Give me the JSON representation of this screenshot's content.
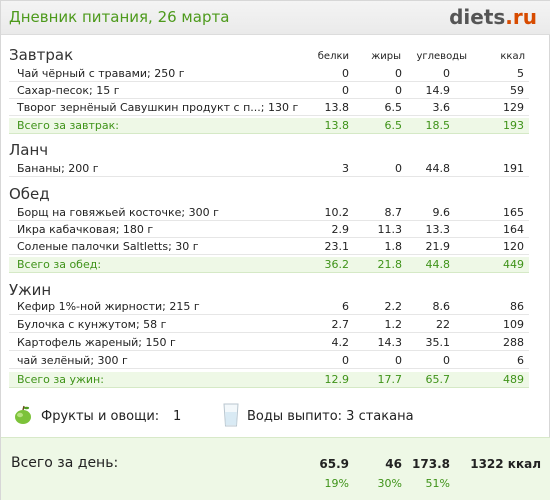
{
  "header": {
    "title": "Дневник питания, 26 марта",
    "logo_main": "diets",
    "logo_tld": ".ru"
  },
  "columns": {
    "protein": "белки",
    "fat": "жиры",
    "carbs": "углеводы",
    "kcal": "ккал"
  },
  "sections": [
    {
      "title": "Завтрак",
      "rows": [
        {
          "name": "Чай чёрный с травами; 250 г",
          "protein": "0",
          "fat": "0",
          "carbs": "0",
          "kcal": "5"
        },
        {
          "name": "Сахар-песок; 15 г",
          "protein": "0",
          "fat": "0",
          "carbs": "14.9",
          "kcal": "59"
        },
        {
          "name": "Творог зернёный Савушкин продукт с п...; 130 г",
          "protein": "13.8",
          "fat": "6.5",
          "carbs": "3.6",
          "kcal": "129"
        }
      ],
      "total": {
        "label": "Всего за завтрак:",
        "protein": "13.8",
        "fat": "6.5",
        "carbs": "18.5",
        "kcal": "193"
      }
    },
    {
      "title": "Ланч",
      "rows": [
        {
          "name": "Бананы; 200 г",
          "protein": "3",
          "fat": "0",
          "carbs": "44.8",
          "kcal": "191"
        }
      ]
    },
    {
      "title": "Обед",
      "rows": [
        {
          "name": "Борщ на говяжьей косточке; 300 г",
          "protein": "10.2",
          "fat": "8.7",
          "carbs": "9.6",
          "kcal": "165"
        },
        {
          "name": "Икра кабачковая; 180 г",
          "protein": "2.9",
          "fat": "11.3",
          "carbs": "13.3",
          "kcal": "164"
        },
        {
          "name": "Соленые палочки Saltletts; 30 г",
          "protein": "23.1",
          "fat": "1.8",
          "carbs": "21.9",
          "kcal": "120"
        }
      ],
      "total": {
        "label": "Всего за обед:",
        "protein": "36.2",
        "fat": "21.8",
        "carbs": "44.8",
        "kcal": "449"
      }
    },
    {
      "title": "Ужин",
      "rows": [
        {
          "name": "Кефир 1%-ной жирности; 215 г",
          "protein": "6",
          "fat": "2.2",
          "carbs": "8.6",
          "kcal": "86"
        },
        {
          "name": "Булочка с кунжутом; 58 г",
          "protein": "2.7",
          "fat": "1.2",
          "carbs": "22",
          "kcal": "109"
        },
        {
          "name": "Картофель жареный; 150 г",
          "protein": "4.2",
          "fat": "14.3",
          "carbs": "35.1",
          "kcal": "288"
        },
        {
          "name": "чай зелёный; 300 г",
          "protein": "0",
          "fat": "0",
          "carbs": "0",
          "kcal": "6"
        }
      ],
      "total": {
        "label": "Всего за ужин:",
        "protein": "12.9",
        "fat": "17.7",
        "carbs": "65.7",
        "kcal": "489"
      }
    }
  ],
  "extras": {
    "fruits_label": "Фрукты и овощи:",
    "fruits_value": "1",
    "water_label": "Воды выпито: 3 стакана",
    "fruit_icon": "apple-icon",
    "water_icon": "glass-icon"
  },
  "day_total": {
    "label": "Всего за день:",
    "protein": "65.9",
    "fat": "46",
    "carbs": "173.8",
    "kcal": "1322 ккал",
    "protein_pct": "19%",
    "fat_pct": "30%",
    "carbs_pct": "51%"
  },
  "colors": {
    "accent_green": "#4d9a1c",
    "logo_orange": "#d74b00",
    "total_bg": "#eef8e6"
  }
}
